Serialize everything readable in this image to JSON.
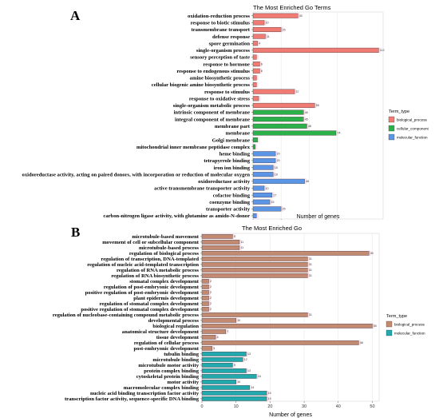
{
  "chart_data": [
    {
      "panel": "A",
      "type": "bar",
      "orientation": "horizontal",
      "title": "The Most Enriched Go Terms",
      "xlabel": "Number of genes",
      "ylabel": "",
      "xlim": [
        0,
        116
      ],
      "xticks": [
        0,
        25,
        50,
        75
      ],
      "grid": true,
      "legend": {
        "title": "Term_type",
        "position": "right"
      },
      "colors": {
        "biological_process": "#f07b72",
        "cellular_component": "#2ab14a",
        "molecular_function": "#5b95e6"
      },
      "series": [
        {
          "name": "biological_process",
          "categories": [
            "oxidation-reduction process",
            "response to biotic stimulus",
            "transmembrane transport",
            "defense response",
            "spore germination",
            "single-organism process",
            "sensory perception of taste",
            "response to hormone",
            "response to endogenous stimulus",
            "amine biosynthetic process",
            "cellular biogenic amine biosynthetic process",
            "response to stimulus",
            "response to oxidative stress",
            "single-organism metabolic process"
          ],
          "values": [
            40,
            10,
            25,
            11,
            4,
            112,
            3,
            6,
            6,
            3,
            3,
            37,
            5,
            55
          ]
        },
        {
          "name": "cellular_component",
          "categories": [
            "intrinsic component of membrane",
            "integral component of membrane",
            "membrane part",
            "membrane",
            "Golgi membrane",
            "mitochondrial inner membrane peptidase complex"
          ],
          "values": [
            45,
            45,
            48,
            74,
            4,
            2
          ]
        },
        {
          "name": "molecular_function",
          "categories": [
            "heme binding",
            "tetrapyrrole binding",
            "iron ion binding",
            "oxidoreductase activity, acting on paired donors, with incorporation or reduction of molecular oxygen",
            "oxidoreductase activity",
            "active transmembrane transporter activity",
            "cofactor binding",
            "coenzyme binding",
            "transporter activity",
            "carbon-nitrogen ligase activity, with glutamine as amido-N-donor"
          ],
          "values": [
            20,
            20,
            18,
            18,
            46,
            10,
            17,
            15,
            25,
            3
          ]
        }
      ],
      "value_labels": [
        "40",
        "10",
        "25",
        "11",
        "4",
        "112",
        "",
        "6",
        "6",
        "",
        "",
        "37",
        "",
        "55",
        "45",
        "45",
        "48",
        "74",
        "",
        "",
        "20",
        "20",
        "18",
        "18",
        "46",
        "10",
        "17",
        "15",
        "25",
        ""
      ]
    },
    {
      "panel": "B",
      "type": "bar",
      "orientation": "horizontal",
      "title": "The Most Enriched Go",
      "xlabel": "Number of genes",
      "ylabel": "",
      "xlim": [
        0,
        52
      ],
      "xticks": [
        0,
        10,
        20,
        30,
        40,
        50
      ],
      "grid": true,
      "legend": {
        "title": "Term_type",
        "position": "right"
      },
      "colors": {
        "biological_process": "#c38a72",
        "molecular_function": "#21a9ae"
      },
      "series": [
        {
          "name": "biological_process",
          "categories": [
            "microtubule-based movement",
            "movement of cell or subcellular component",
            "microtubule-based process",
            "regulation of biological process",
            "regulation of transcription, DNA-templated",
            "regulation of nucleic acid-templated transcription",
            "regulation of RNA metabolic process",
            "regulation of RNA biosynthetic process",
            "stomatal complex development",
            "regulation of post-embryonic development",
            "positive regulation of post-embryonic development",
            "plant epidermis development",
            "regulation of stomatal complex development",
            "positive regulation of stomatal complex development",
            "regulation of nucleobase-containing compound metabolic process",
            "developmental process",
            "biological regulation",
            "anatomical structure development",
            "tissue development",
            "regulation of cellular process",
            "post-embryonic development"
          ],
          "values": [
            9,
            11,
            11,
            49,
            31,
            31,
            31,
            31,
            2,
            2,
            2,
            2,
            2,
            2,
            31,
            10,
            50,
            7,
            4,
            46,
            3
          ]
        },
        {
          "name": "molecular_function",
          "categories": [
            "tubulin binding",
            "microtubule binding",
            "microtubule motor activity",
            "protein complex binding",
            "cytoskeletal protein binding",
            "motor activity",
            "macromolecular complex binding",
            "nucleic acid binding transcription factor activity",
            "transcription factor activity, sequence-specific DNA binding"
          ],
          "values": [
            13,
            12,
            9,
            13,
            16,
            10,
            14,
            19,
            19
          ]
        }
      ],
      "value_labels": [
        "9",
        "11",
        "11",
        "49",
        "31",
        "31",
        "31",
        "31",
        "2",
        "2",
        "2",
        "2",
        "2",
        "2",
        "31",
        "10",
        "50",
        "7",
        "4",
        "46",
        "3",
        "13",
        "12",
        "9",
        "13",
        "16",
        "10",
        "14",
        "19",
        "19"
      ]
    }
  ]
}
